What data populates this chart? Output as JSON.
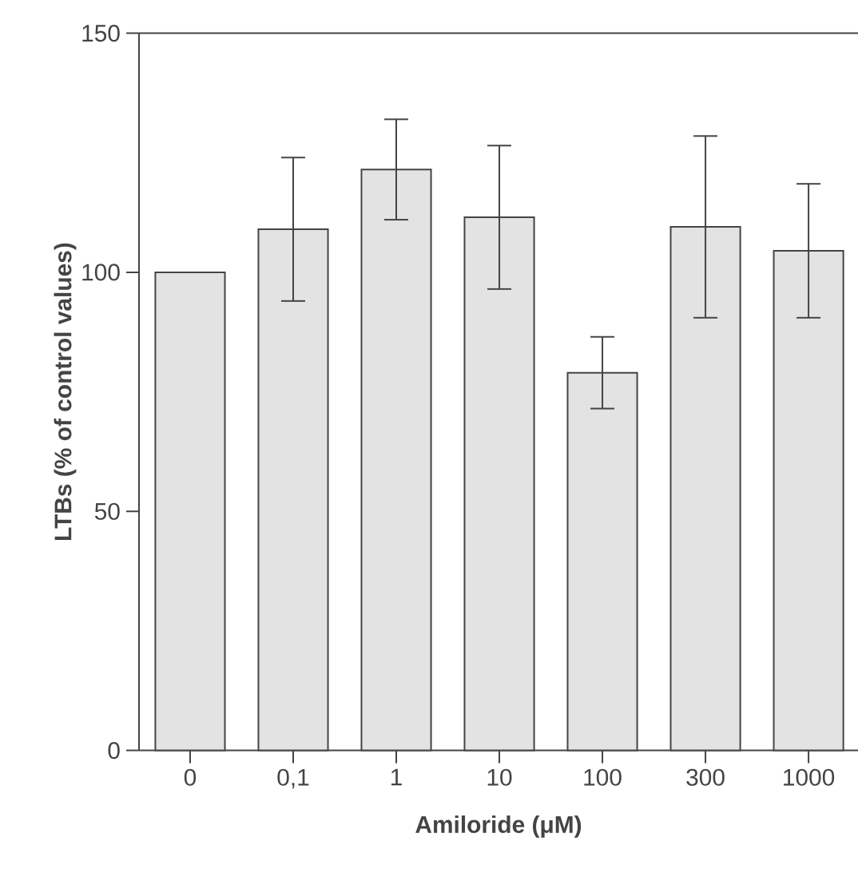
{
  "chart_data": {
    "type": "bar",
    "xlabel": "Amiloride (μM)",
    "ylabel": "LTBs (% of control values)",
    "categories": [
      "0",
      "0,1",
      "1",
      "10",
      "100",
      "300",
      "1000"
    ],
    "values": [
      100,
      109,
      121.5,
      111.5,
      79,
      109.5,
      104.5
    ],
    "errors": [
      null,
      15,
      10.5,
      15,
      7.5,
      19,
      14
    ],
    "color": "#e3e3e3",
    "ylim": [
      0,
      150
    ],
    "yticks": [
      0,
      50,
      100,
      150
    ]
  }
}
